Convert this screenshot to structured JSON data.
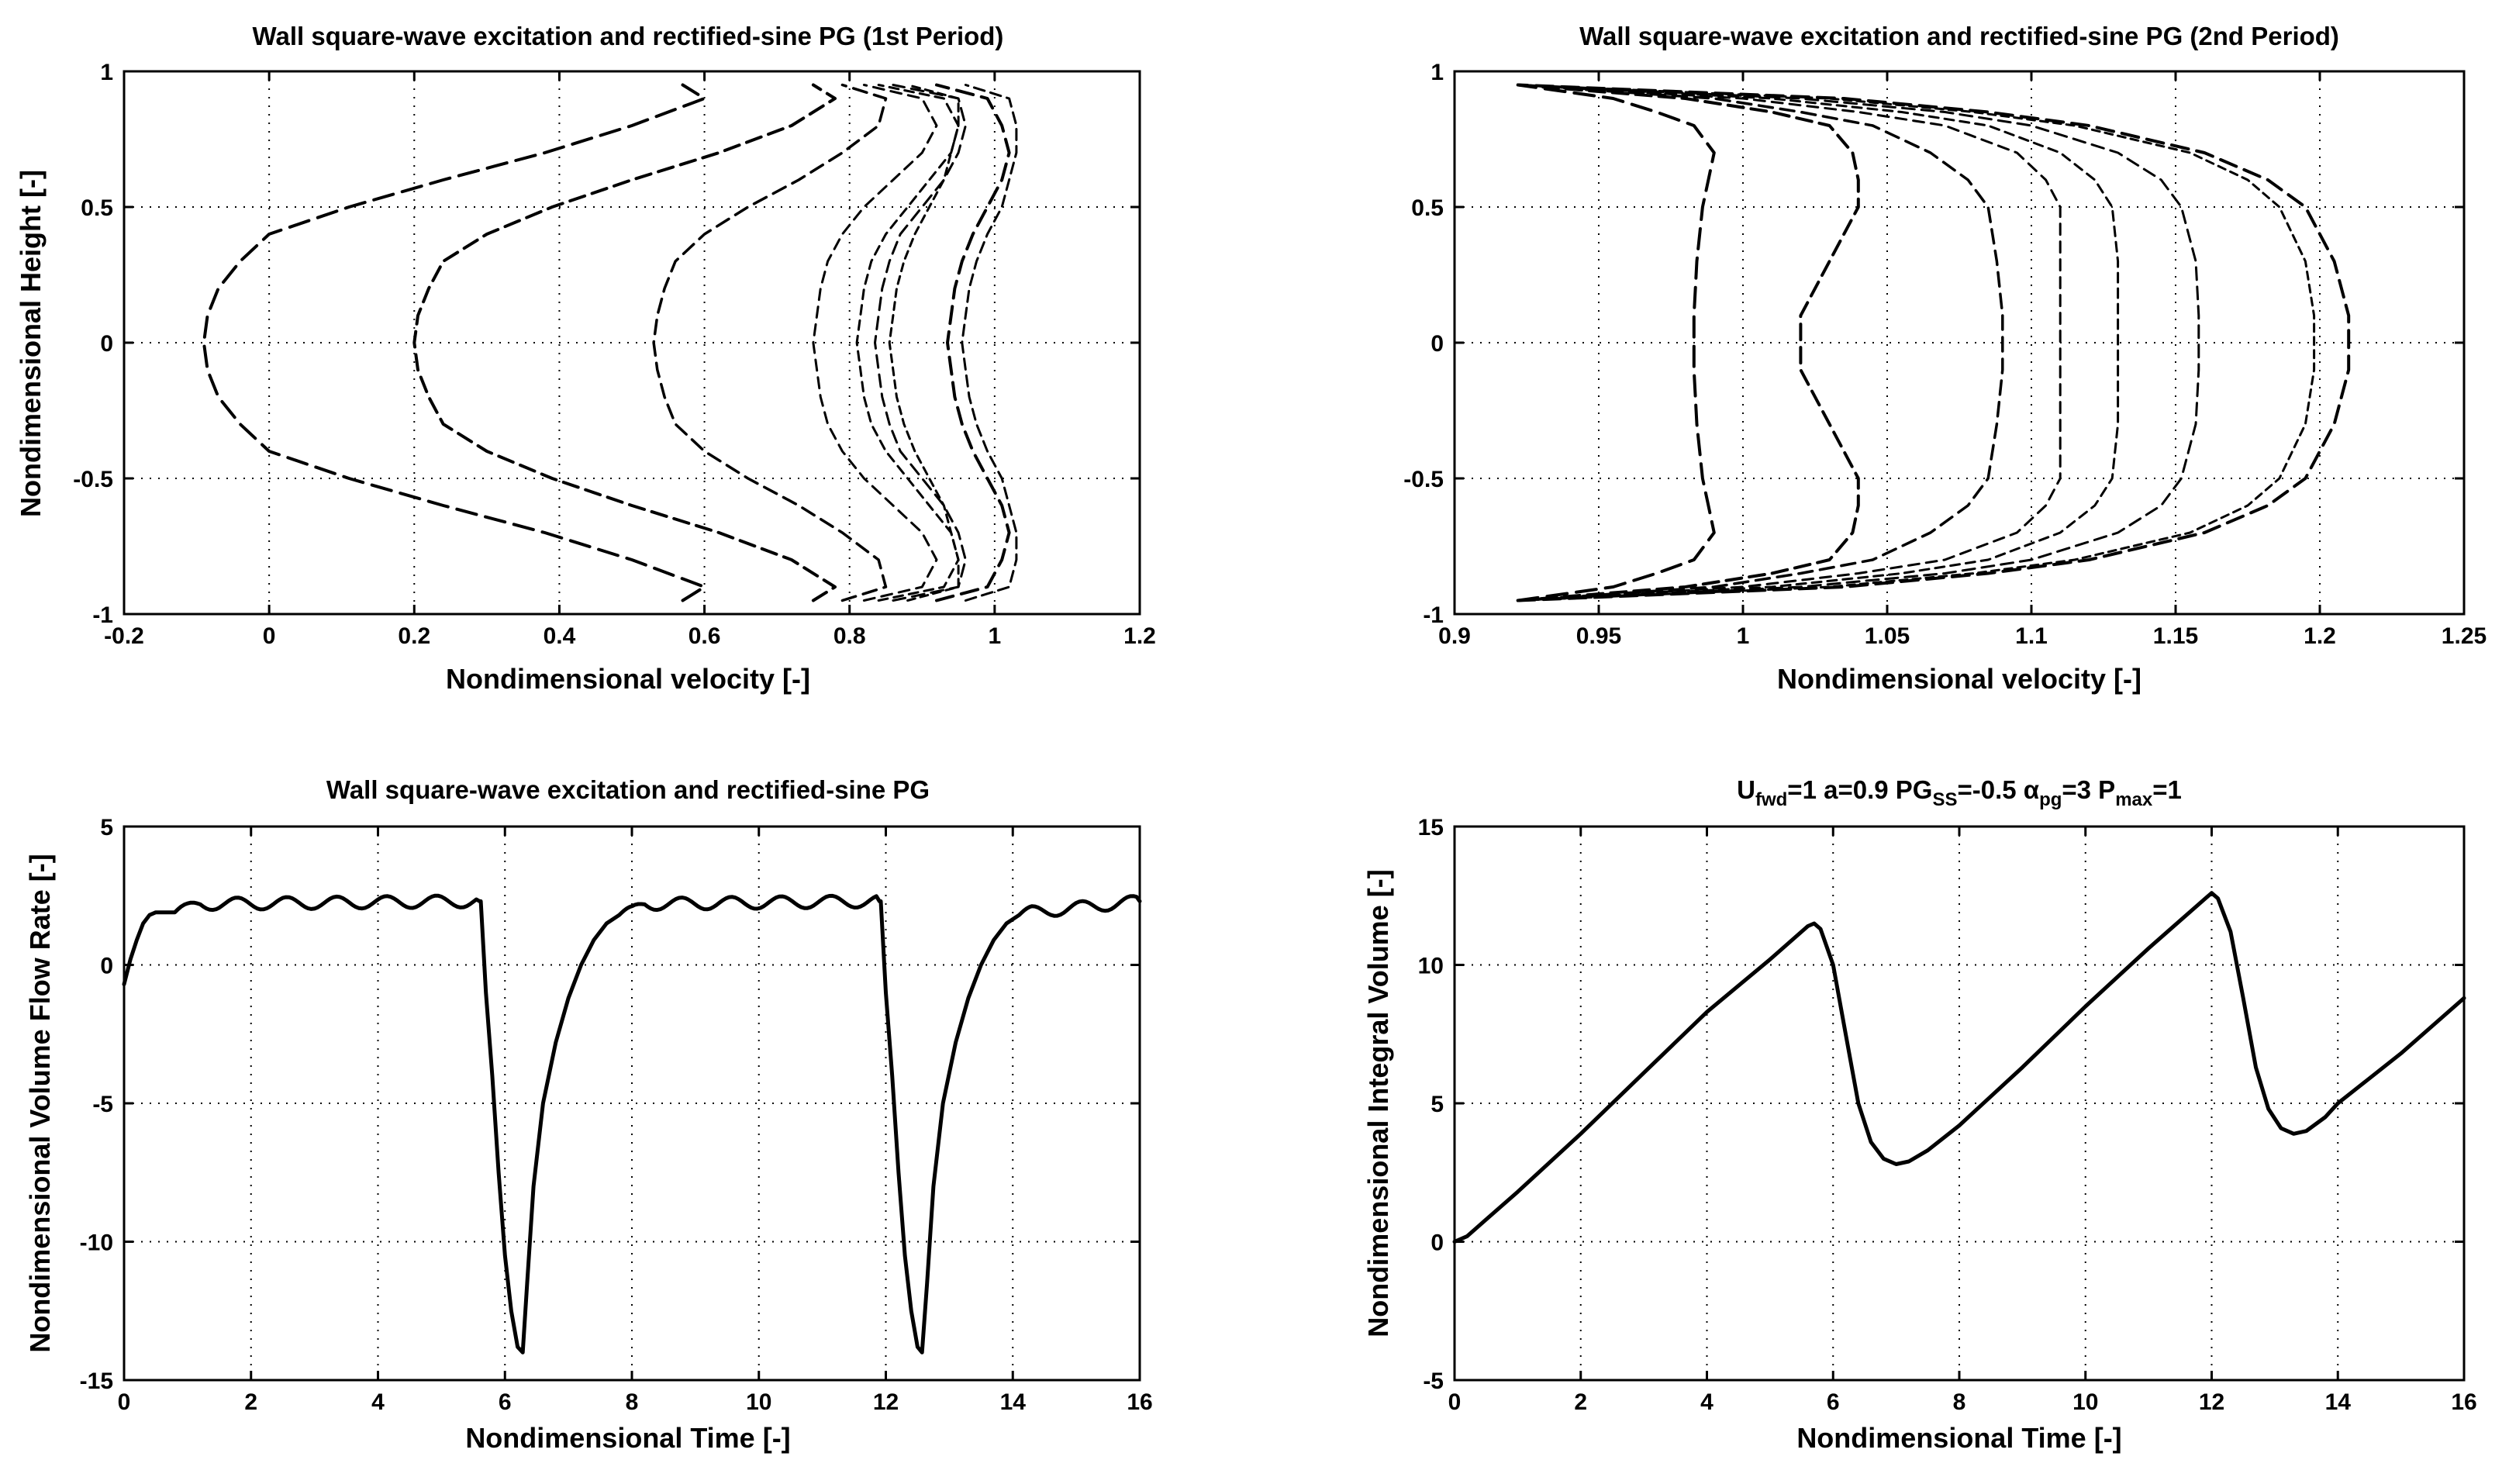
{
  "figure": {
    "background": "#ffffff",
    "line_color": "#000000"
  },
  "chart_data": [
    {
      "id": "p1",
      "type": "line",
      "title": "Wall square-wave excitation and rectified-sine PG (1st Period)",
      "xlabel": "Nondimensional velocity [-]",
      "ylabel": "Nondimensional Height [-]",
      "xlim": [
        -0.2,
        1.2
      ],
      "ylim": [
        -1,
        1
      ],
      "xticks": [
        -0.2,
        0,
        0.2,
        0.4,
        0.6,
        0.8,
        1,
        1.2
      ],
      "xticklabels": [
        "-0.2",
        "0",
        "0.2",
        "0.4",
        "0.6",
        "0.8",
        "1",
        "1.2"
      ],
      "yticks": [
        -1,
        -0.5,
        0,
        0.5,
        1
      ],
      "yticklabels": [
        "-1",
        "-0.5",
        "0",
        "0.5",
        "1"
      ],
      "grid": true,
      "profile_y": [
        -0.95,
        -0.9,
        -0.8,
        -0.7,
        -0.6,
        -0.5,
        -0.4,
        -0.3,
        -0.2,
        -0.1,
        0,
        0.1,
        0.2,
        0.3,
        0.4,
        0.5,
        0.6,
        0.7,
        0.8,
        0.9,
        0.95
      ],
      "series": [
        {
          "name": "profile 1",
          "x": [
            0.57,
            0.6,
            0.5,
            0.38,
            0.24,
            0.11,
            0.0,
            -0.04,
            -0.07,
            -0.085,
            -0.09,
            -0.085,
            -0.07,
            -0.04,
            0.0,
            0.11,
            0.24,
            0.38,
            0.5,
            0.6,
            0.57
          ]
        },
        {
          "name": "profile 2",
          "x": [
            0.75,
            0.78,
            0.72,
            0.62,
            0.5,
            0.39,
            0.3,
            0.24,
            0.22,
            0.205,
            0.2,
            0.205,
            0.22,
            0.24,
            0.3,
            0.39,
            0.5,
            0.62,
            0.72,
            0.78,
            0.75
          ]
        },
        {
          "name": "profile 3",
          "x": [
            0.79,
            0.85,
            0.84,
            0.79,
            0.73,
            0.66,
            0.6,
            0.56,
            0.545,
            0.535,
            0.53,
            0.535,
            0.545,
            0.56,
            0.6,
            0.66,
            0.73,
            0.79,
            0.84,
            0.85,
            0.79
          ]
        },
        {
          "name": "profile 4",
          "x": [
            0.82,
            0.9,
            0.92,
            0.9,
            0.86,
            0.82,
            0.79,
            0.77,
            0.76,
            0.755,
            0.75,
            0.755,
            0.76,
            0.77,
            0.79,
            0.82,
            0.86,
            0.9,
            0.92,
            0.9,
            0.82
          ]
        },
        {
          "name": "profile 5",
          "x": [
            0.84,
            0.93,
            0.95,
            0.94,
            0.91,
            0.88,
            0.85,
            0.83,
            0.82,
            0.815,
            0.81,
            0.815,
            0.82,
            0.83,
            0.85,
            0.88,
            0.91,
            0.94,
            0.95,
            0.93,
            0.84
          ]
        },
        {
          "name": "profile 6",
          "x": [
            0.86,
            0.95,
            0.96,
            0.95,
            0.93,
            0.9,
            0.87,
            0.855,
            0.845,
            0.84,
            0.835,
            0.84,
            0.845,
            0.855,
            0.87,
            0.9,
            0.93,
            0.95,
            0.96,
            0.95,
            0.86
          ]
        },
        {
          "name": "profile 7",
          "x": [
            0.88,
            0.95,
            0.95,
            0.94,
            0.93,
            0.91,
            0.89,
            0.875,
            0.865,
            0.86,
            0.855,
            0.86,
            0.865,
            0.875,
            0.89,
            0.91,
            0.93,
            0.94,
            0.95,
            0.95,
            0.88
          ]
        },
        {
          "name": "profile 8",
          "x": [
            0.92,
            0.99,
            1.01,
            1.02,
            1.01,
            0.99,
            0.97,
            0.955,
            0.945,
            0.94,
            0.935,
            0.94,
            0.945,
            0.955,
            0.97,
            0.99,
            1.01,
            1.02,
            1.01,
            0.99,
            0.92
          ]
        },
        {
          "name": "profile 9",
          "x": [
            0.96,
            1.02,
            1.03,
            1.03,
            1.02,
            1.01,
            0.99,
            0.975,
            0.965,
            0.96,
            0.955,
            0.96,
            0.965,
            0.975,
            0.99,
            1.01,
            1.02,
            1.03,
            1.03,
            1.02,
            0.96
          ]
        }
      ]
    },
    {
      "id": "p2",
      "type": "line",
      "title": "Wall square-wave excitation and rectified-sine PG (2nd Period)",
      "xlabel": "Nondimensional velocity [-]",
      "ylabel": "",
      "xlim": [
        0.9,
        1.25
      ],
      "ylim": [
        -1,
        1
      ],
      "xticks": [
        0.9,
        0.95,
        1,
        1.05,
        1.1,
        1.15,
        1.2,
        1.25
      ],
      "xticklabels": [
        "0.9",
        "0.95",
        "1",
        "1.05",
        "1.1",
        "1.15",
        "1.2",
        "1.25"
      ],
      "yticks": [
        -1,
        -0.5,
        0,
        0.5,
        1
      ],
      "yticklabels": [
        "-1",
        "-0.5",
        "0",
        "0.5",
        "1"
      ],
      "grid": true,
      "profile_y": [
        -0.95,
        -0.9,
        -0.85,
        -0.8,
        -0.7,
        -0.6,
        -0.5,
        -0.3,
        -0.1,
        0,
        0.1,
        0.3,
        0.5,
        0.6,
        0.7,
        0.8,
        0.85,
        0.9,
        0.95
      ],
      "series": [
        {
          "name": "profile 1",
          "x": [
            0.922,
            0.955,
            0.97,
            0.983,
            0.99,
            0.988,
            0.986,
            0.984,
            0.983,
            0.983,
            0.983,
            0.984,
            0.986,
            0.988,
            0.99,
            0.983,
            0.97,
            0.955,
            0.922
          ]
        },
        {
          "name": "profile 2",
          "x": [
            0.922,
            0.98,
            1.01,
            1.03,
            1.038,
            1.04,
            1.04,
            1.03,
            1.02,
            1.02,
            1.02,
            1.03,
            1.04,
            1.04,
            1.038,
            1.03,
            1.01,
            0.98,
            0.922
          ]
        },
        {
          "name": "profile 3",
          "x": [
            0.922,
            0.99,
            1.02,
            1.045,
            1.065,
            1.078,
            1.085,
            1.088,
            1.09,
            1.09,
            1.09,
            1.088,
            1.085,
            1.078,
            1.065,
            1.045,
            1.02,
            0.99,
            0.922
          ]
        },
        {
          "name": "profile 4",
          "x": [
            0.922,
            1.0,
            1.04,
            1.07,
            1.095,
            1.105,
            1.11,
            1.11,
            1.11,
            1.11,
            1.11,
            1.11,
            1.11,
            1.105,
            1.095,
            1.07,
            1.04,
            1.0,
            0.922
          ]
        },
        {
          "name": "profile 5",
          "x": [
            0.922,
            1.01,
            1.055,
            1.085,
            1.11,
            1.122,
            1.128,
            1.13,
            1.13,
            1.13,
            1.13,
            1.13,
            1.128,
            1.122,
            1.11,
            1.085,
            1.055,
            1.01,
            0.922
          ]
        },
        {
          "name": "profile 6",
          "x": [
            0.922,
            1.02,
            1.07,
            1.1,
            1.13,
            1.145,
            1.152,
            1.157,
            1.158,
            1.158,
            1.158,
            1.157,
            1.152,
            1.145,
            1.13,
            1.1,
            1.07,
            1.02,
            0.922
          ]
        },
        {
          "name": "profile 7",
          "x": [
            0.922,
            1.03,
            1.08,
            1.115,
            1.155,
            1.175,
            1.186,
            1.195,
            1.198,
            1.198,
            1.198,
            1.195,
            1.186,
            1.175,
            1.155,
            1.115,
            1.08,
            1.03,
            0.922
          ]
        },
        {
          "name": "profile 8",
          "x": [
            0.922,
            1.035,
            1.085,
            1.12,
            1.16,
            1.182,
            1.195,
            1.205,
            1.21,
            1.21,
            1.21,
            1.205,
            1.195,
            1.182,
            1.16,
            1.12,
            1.085,
            1.035,
            0.922
          ]
        }
      ]
    },
    {
      "id": "p3",
      "type": "line",
      "title": "Wall square-wave excitation and rectified-sine PG",
      "xlabel": "Nondimensional Time [-]",
      "ylabel": "Nondimensional Volume Flow Rate [-]",
      "xlim": [
        0,
        16
      ],
      "ylim": [
        -15,
        5
      ],
      "xticks": [
        0,
        2,
        4,
        6,
        8,
        10,
        12,
        14,
        16
      ],
      "xticklabels": [
        "0",
        "2",
        "4",
        "6",
        "8",
        "10",
        "12",
        "14",
        "16"
      ],
      "yticks": [
        -15,
        -10,
        -5,
        0,
        5
      ],
      "yticklabels": [
        "-15",
        "-10",
        "-5",
        "0",
        "5"
      ],
      "grid": true,
      "series": [
        {
          "name": "flow rate",
          "x": [
            0,
            0.1,
            0.2,
            0.3,
            0.4,
            0.5,
            0.8,
            1.0,
            1.2,
            5.6,
            5.62,
            5.7,
            5.8,
            5.9,
            6.0,
            6.1,
            6.2,
            6.28,
            6.35,
            6.45,
            6.6,
            6.8,
            7.0,
            7.2,
            7.4,
            7.6,
            7.8,
            8.0,
            8.2,
            11.9,
            11.92,
            12.0,
            12.1,
            12.2,
            12.3,
            12.4,
            12.5,
            12.57,
            12.65,
            12.75,
            12.9,
            13.1,
            13.3,
            13.5,
            13.7,
            13.9,
            14.1,
            14.3,
            16.0
          ],
          "y": [
            -0.7,
            0.2,
            0.9,
            1.5,
            1.8,
            1.9,
            1.9,
            2.0,
            2.2,
            2.3,
            2.3,
            -1.0,
            -4.0,
            -7.5,
            -10.5,
            -12.5,
            -13.8,
            -14.0,
            -11.5,
            -8.0,
            -5.0,
            -2.8,
            -1.2,
            0.0,
            0.9,
            1.5,
            1.8,
            1.9,
            2.2,
            2.3,
            2.3,
            -1.0,
            -4.0,
            -7.5,
            -10.5,
            -12.5,
            -13.8,
            -14.0,
            -11.5,
            -8.0,
            -5.0,
            -2.8,
            -1.2,
            0.0,
            0.9,
            1.5,
            1.8,
            1.9,
            2.3
          ],
          "ripple": [
            {
              "from": 0.8,
              "to": 5.6,
              "amplitude": 0.22
            },
            {
              "from": 7.8,
              "to": 11.9,
              "amplitude": 0.22
            },
            {
              "from": 14.1,
              "to": 16.0,
              "amplitude": 0.22
            }
          ],
          "ripple_period": 0.785
        }
      ]
    },
    {
      "id": "p4",
      "type": "line",
      "title_parts": [
        {
          "t": "U",
          "sub": false
        },
        {
          "t": "fwd",
          "sub": true
        },
        {
          "t": "=1 a=0.9 PG",
          "sub": false
        },
        {
          "t": "SS",
          "sub": true
        },
        {
          "t": "=-0.5 ",
          "sub": false
        },
        {
          "t": "α",
          "sub": false
        },
        {
          "t": "pg",
          "sub": true
        },
        {
          "t": "=3 P",
          "sub": false
        },
        {
          "t": "max",
          "sub": true
        },
        {
          "t": "=1",
          "sub": false
        }
      ],
      "xlabel": "Nondimensional Time [-]",
      "ylabel": "Nondimensional Integral Volume [-]",
      "xlim": [
        0,
        16
      ],
      "ylim": [
        -5,
        15
      ],
      "xticks": [
        0,
        2,
        4,
        6,
        8,
        10,
        12,
        14,
        16
      ],
      "xticklabels": [
        "0",
        "2",
        "4",
        "6",
        "8",
        "10",
        "12",
        "14",
        "16"
      ],
      "yticks": [
        -5,
        0,
        5,
        10,
        15
      ],
      "yticklabels": [
        "-5",
        "0",
        "5",
        "10",
        "15"
      ],
      "grid": true,
      "series": [
        {
          "name": "integral volume",
          "x": [
            0,
            0.2,
            0.5,
            1.0,
            2.0,
            3.0,
            4.0,
            5.0,
            5.6,
            5.7,
            5.8,
            6.0,
            6.2,
            6.4,
            6.6,
            6.8,
            7.0,
            7.2,
            7.5,
            8.0,
            9.0,
            10.0,
            11.0,
            11.9,
            12.0,
            12.1,
            12.3,
            12.5,
            12.7,
            12.9,
            13.1,
            13.3,
            13.5,
            13.8,
            14.0,
            15.0,
            16.0
          ],
          "y": [
            0,
            0.2,
            0.8,
            1.8,
            3.9,
            6.1,
            8.3,
            10.2,
            11.4,
            11.5,
            11.3,
            10.0,
            7.5,
            5.0,
            3.6,
            3.0,
            2.8,
            2.9,
            3.3,
            4.2,
            6.3,
            8.5,
            10.6,
            12.4,
            12.6,
            12.4,
            11.2,
            8.8,
            6.3,
            4.8,
            4.1,
            3.9,
            4.0,
            4.5,
            5.0,
            6.8,
            8.8
          ]
        }
      ]
    }
  ]
}
